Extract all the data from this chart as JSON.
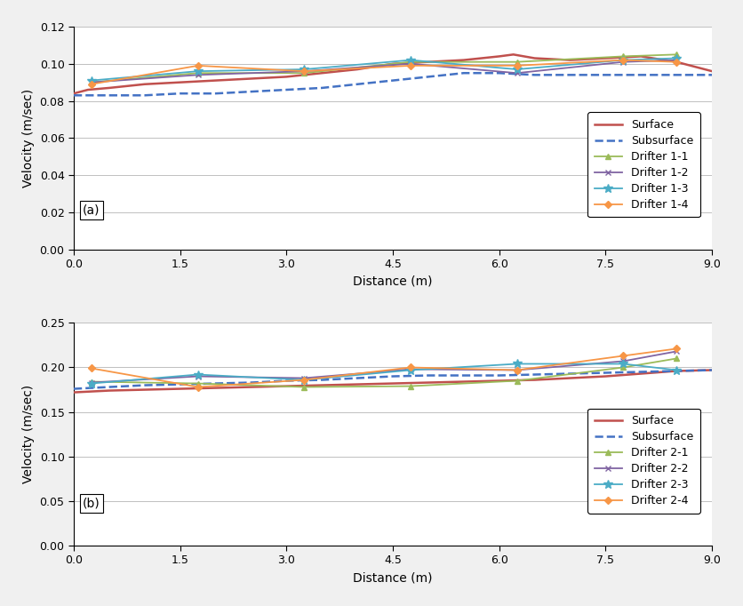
{
  "panel_a": {
    "label": "(a)",
    "ylabel": "Velocity (m/sec)",
    "xlabel": "Distance (m)",
    "ylim": [
      0.0,
      0.12
    ],
    "xlim": [
      0.0,
      9.0
    ],
    "yticks": [
      0.0,
      0.02,
      0.04,
      0.06,
      0.08,
      0.1,
      0.12
    ],
    "xticks": [
      0.0,
      1.5,
      3.0,
      4.5,
      6.0,
      7.5,
      9.0
    ],
    "surface": {
      "x": [
        0.0,
        0.2,
        0.5,
        1.0,
        1.5,
        2.0,
        2.5,
        3.0,
        3.5,
        4.0,
        4.5,
        5.0,
        5.5,
        6.0,
        6.2,
        6.5,
        7.0,
        7.5,
        8.0,
        8.5,
        9.0
      ],
      "y": [
        0.084,
        0.086,
        0.087,
        0.089,
        0.09,
        0.091,
        0.092,
        0.093,
        0.095,
        0.097,
        0.1,
        0.101,
        0.102,
        0.104,
        0.105,
        0.103,
        0.102,
        0.103,
        0.104,
        0.101,
        0.096
      ],
      "color": "#c0504d",
      "linestyle": "-",
      "linewidth": 1.8
    },
    "subsurface": {
      "x": [
        0.0,
        0.5,
        1.0,
        1.5,
        2.0,
        2.5,
        3.0,
        3.5,
        4.0,
        4.5,
        5.0,
        5.5,
        6.0,
        6.5,
        7.0,
        7.5,
        8.0,
        8.5,
        9.0
      ],
      "y": [
        0.083,
        0.083,
        0.083,
        0.084,
        0.084,
        0.085,
        0.086,
        0.087,
        0.089,
        0.091,
        0.093,
        0.095,
        0.095,
        0.094,
        0.094,
        0.094,
        0.094,
        0.094,
        0.094
      ],
      "color": "#4472c4",
      "linestyle": "--",
      "linewidth": 1.8
    },
    "drifter11": {
      "x": [
        0.25,
        1.75,
        3.25,
        4.75,
        6.25,
        7.75,
        8.5
      ],
      "y": [
        0.09,
        0.095,
        0.095,
        0.101,
        0.101,
        0.104,
        0.105
      ],
      "color": "#9bbb59",
      "marker": "^",
      "linewidth": 1.3,
      "markersize": 5
    },
    "drifter12": {
      "x": [
        0.25,
        1.75,
        3.25,
        4.75,
        6.25,
        7.75,
        8.5
      ],
      "y": [
        0.09,
        0.094,
        0.096,
        0.1,
        0.095,
        0.101,
        0.102
      ],
      "color": "#8064a2",
      "marker": "x",
      "linewidth": 1.3,
      "markersize": 5
    },
    "drifter13": {
      "x": [
        0.25,
        1.75,
        3.25,
        4.75,
        6.25,
        7.75,
        8.5
      ],
      "y": [
        0.091,
        0.096,
        0.097,
        0.102,
        0.097,
        0.102,
        0.103
      ],
      "color": "#4bacc6",
      "marker": "*",
      "linewidth": 1.3,
      "markersize": 7
    },
    "drifter14": {
      "x": [
        0.25,
        1.75,
        3.25,
        4.75,
        6.25,
        7.75,
        8.5
      ],
      "y": [
        0.089,
        0.099,
        0.096,
        0.099,
        0.099,
        0.102,
        0.101
      ],
      "color": "#f79646",
      "marker": "D",
      "linewidth": 1.3,
      "markersize": 4
    },
    "legend_labels": [
      "Surface",
      "Subsurface",
      "Drifter 1-1",
      "Drifter 1-2",
      "Drifter 1-3",
      "Drifter 1-4"
    ]
  },
  "panel_b": {
    "label": "(b)",
    "ylabel": "Velocity (m/sec)",
    "xlabel": "Distance (m)",
    "ylim": [
      0.0,
      0.25
    ],
    "xlim": [
      0.0,
      9.0
    ],
    "yticks": [
      0.0,
      0.05,
      0.1,
      0.15,
      0.2,
      0.25
    ],
    "xticks": [
      0.0,
      1.5,
      3.0,
      4.5,
      6.0,
      7.5,
      9.0
    ],
    "surface": {
      "x": [
        0.0,
        0.25,
        0.5,
        1.0,
        1.5,
        2.0,
        2.5,
        3.0,
        3.5,
        4.0,
        4.5,
        5.0,
        5.5,
        6.0,
        6.5,
        7.0,
        7.5,
        8.0,
        8.5,
        9.0
      ],
      "y": [
        0.172,
        0.173,
        0.174,
        0.175,
        0.176,
        0.177,
        0.178,
        0.179,
        0.18,
        0.181,
        0.182,
        0.183,
        0.184,
        0.185,
        0.186,
        0.188,
        0.19,
        0.193,
        0.196,
        0.197
      ],
      "color": "#c0504d",
      "linestyle": "-",
      "linewidth": 1.8
    },
    "subsurface": {
      "x": [
        0.0,
        0.5,
        1.0,
        1.5,
        2.0,
        2.5,
        3.0,
        3.5,
        4.0,
        4.5,
        5.0,
        5.5,
        6.0,
        6.5,
        7.0,
        7.5,
        8.0,
        8.5,
        9.0
      ],
      "y": [
        0.176,
        0.178,
        0.18,
        0.181,
        0.182,
        0.183,
        0.185,
        0.186,
        0.188,
        0.19,
        0.191,
        0.191,
        0.191,
        0.192,
        0.193,
        0.194,
        0.195,
        0.196,
        0.197
      ],
      "color": "#4472c4",
      "linestyle": "--",
      "linewidth": 1.8
    },
    "drifter21": {
      "x": [
        0.25,
        1.75,
        3.25,
        4.75,
        6.25,
        7.75,
        8.5
      ],
      "y": [
        0.184,
        0.182,
        0.178,
        0.179,
        0.185,
        0.2,
        0.21
      ],
      "color": "#9bbb59",
      "marker": "^",
      "linewidth": 1.3,
      "markersize": 5
    },
    "drifter22": {
      "x": [
        0.25,
        1.75,
        3.25,
        4.75,
        6.25,
        7.75,
        8.5
      ],
      "y": [
        0.183,
        0.19,
        0.188,
        0.198,
        0.197,
        0.207,
        0.218
      ],
      "color": "#8064a2",
      "marker": "x",
      "linewidth": 1.3,
      "markersize": 5
    },
    "drifter23": {
      "x": [
        0.25,
        1.75,
        3.25,
        4.75,
        6.25,
        7.75,
        8.5
      ],
      "y": [
        0.182,
        0.192,
        0.186,
        0.197,
        0.204,
        0.204,
        0.197
      ],
      "color": "#4bacc6",
      "marker": "*",
      "linewidth": 1.3,
      "markersize": 7
    },
    "drifter24": {
      "x": [
        0.25,
        1.75,
        3.25,
        4.75,
        6.25,
        7.75,
        8.5
      ],
      "y": [
        0.199,
        0.178,
        0.186,
        0.2,
        0.197,
        0.213,
        0.221
      ],
      "color": "#f79646",
      "marker": "D",
      "linewidth": 1.3,
      "markersize": 4
    },
    "legend_labels": [
      "Surface",
      "Subsurface",
      "Drifter 2-1",
      "Drifter 2-2",
      "Drifter 2-3",
      "Drifter 2-4"
    ]
  },
  "bg_color": "#f0f0f0",
  "plot_bg_color": "#ffffff",
  "grid_color": "#c0c0c0",
  "tick_fontsize": 9,
  "label_fontsize": 10,
  "legend_fontsize": 9
}
